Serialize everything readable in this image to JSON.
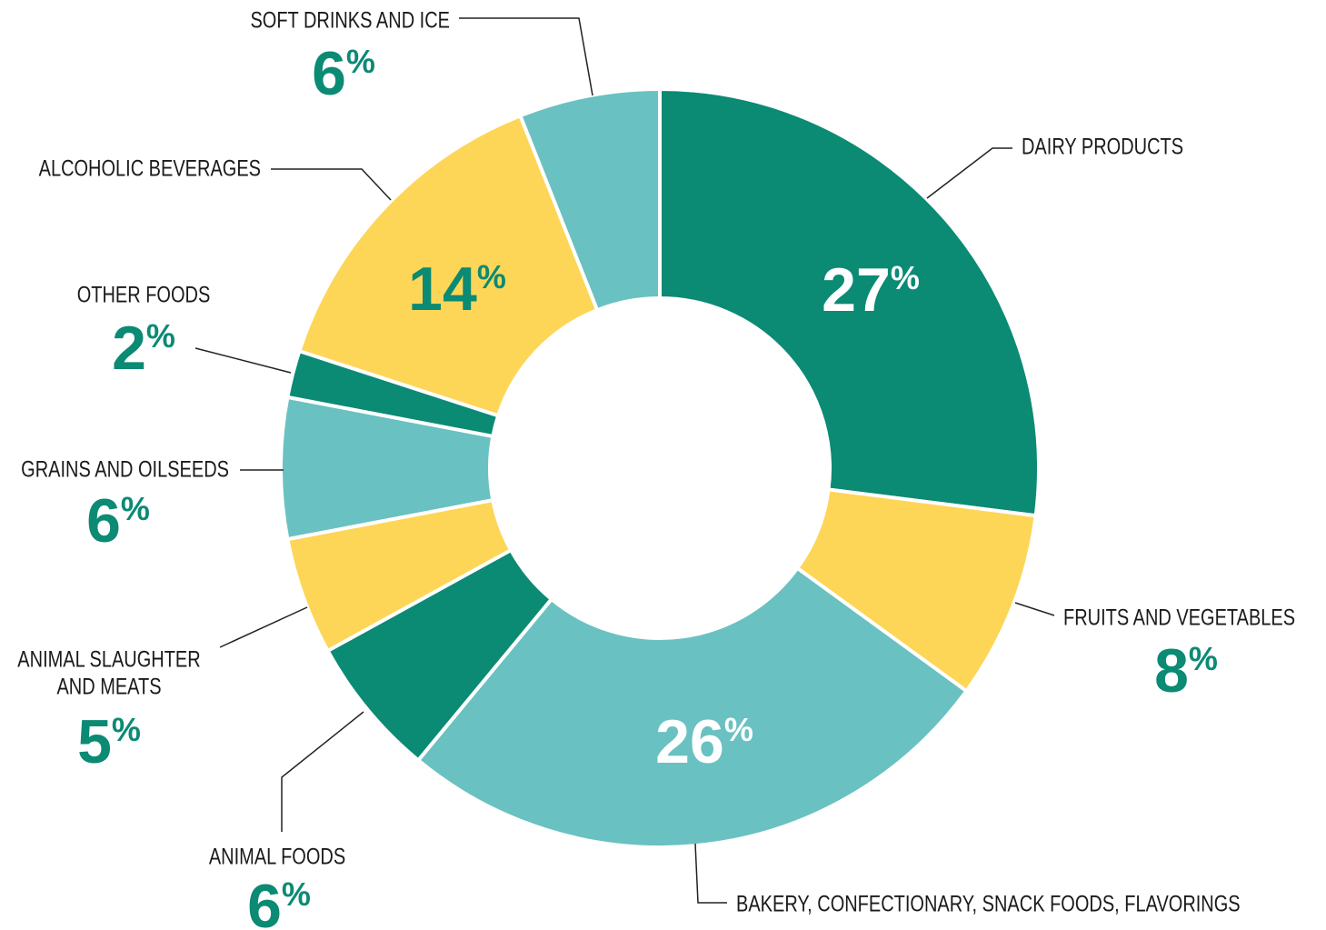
{
  "chart_data": {
    "type": "pie",
    "categories": [
      "DAIRY PRODUCTS",
      "FRUITS AND VEGETABLES",
      "BAKERY, CONFECTIONARY, SNACK FOODS, FLAVORINGS",
      "ANIMAL FOODS",
      "ANIMAL SLAUGHTER AND MEATS",
      "GRAINS AND OILSEEDS",
      "OTHER FOODS",
      "ALCOHOLIC BEVERAGES",
      "SOFT DRINKS AND ICE"
    ],
    "values": [
      27,
      8,
      26,
      6,
      5,
      6,
      2,
      14,
      6
    ],
    "value_labels": [
      "27%",
      "8%",
      "26%",
      "6%",
      "5%",
      "6%",
      "2%",
      "14%",
      "6%"
    ],
    "colors": [
      "#0b8a74",
      "#fdd658",
      "#6ac1c1",
      "#0b8a74",
      "#fdd658",
      "#6ac1c1",
      "#0b8a74",
      "#fdd658",
      "#6ac1c1"
    ]
  }
}
